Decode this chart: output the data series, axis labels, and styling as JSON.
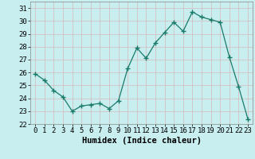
{
  "x": [
    0,
    1,
    2,
    3,
    4,
    5,
    6,
    7,
    8,
    9,
    10,
    11,
    12,
    13,
    14,
    15,
    16,
    17,
    18,
    19,
    20,
    21,
    22,
    23
  ],
  "y": [
    25.9,
    25.4,
    24.6,
    24.1,
    23.0,
    23.4,
    23.5,
    23.6,
    23.2,
    23.8,
    26.3,
    27.9,
    27.1,
    28.3,
    29.1,
    29.9,
    29.2,
    30.7,
    30.3,
    30.1,
    29.9,
    27.2,
    24.9,
    22.4
  ],
  "line_color": "#1a7a6a",
  "marker": "+",
  "marker_size": 4,
  "background_color": "#c8eef0",
  "grid_color": "#d4b8b8",
  "xlabel": "Humidex (Indice chaleur)",
  "xlabel_fontsize": 7.5,
  "tick_fontsize": 6.5,
  "ylim": [
    22,
    31.5
  ],
  "yticks": [
    22,
    23,
    24,
    25,
    26,
    27,
    28,
    29,
    30,
    31
  ],
  "xlim": [
    -0.5,
    23.5
  ],
  "xticks": [
    0,
    1,
    2,
    3,
    4,
    5,
    6,
    7,
    8,
    9,
    10,
    11,
    12,
    13,
    14,
    15,
    16,
    17,
    18,
    19,
    20,
    21,
    22,
    23
  ]
}
